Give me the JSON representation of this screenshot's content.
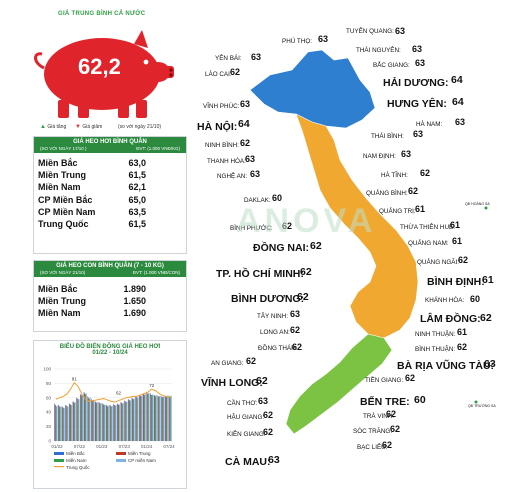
{
  "header": {
    "title": "GIÁ TRUNG BÌNH CẢ NƯỚC"
  },
  "national_average": {
    "value": "62,2"
  },
  "legend": {
    "up": "Giá tăng",
    "down": "Giá giảm",
    "date_note": "(so với ngày",
    "date": "21/10)"
  },
  "live_pig_table": {
    "title": "GIÁ HEO HƠI BÌNH QUÂN",
    "sub_left": "(SO VỚI NGÀY 17/10 )",
    "sub_right": "ĐVT: (1.000 VNĐ/KG)",
    "rows": [
      {
        "name": "Miền Bắc",
        "value": "63,0"
      },
      {
        "name": "Miền Trung",
        "value": "61,5"
      },
      {
        "name": "Miền Nam",
        "value": "62,1"
      },
      {
        "name": "CP Miền Bắc",
        "value": "65,0"
      },
      {
        "name": "CP Miền Nam",
        "value": "63,5"
      },
      {
        "name": "Trung Quốc",
        "value": "61,5"
      }
    ]
  },
  "piglet_table": {
    "title": "GIÁ HEO CON BÌNH QUÂN (7 - 10 KG)",
    "sub_left": "(SO VỚI NGÀY 21/10)",
    "sub_right": "ĐVT: (1.000 VNĐ/CON)",
    "rows": [
      {
        "name": "Miền Bắc",
        "value": "1.890"
      },
      {
        "name": "Miền Trung",
        "value": "1.650"
      },
      {
        "name": "Miền Nam",
        "value": "1.690"
      }
    ]
  },
  "chart_data": {
    "type": "bar",
    "title": "BIỂU ĐỒ BIẾN ĐỘNG GIÁ HEO HƠI",
    "subtitle": "01/22 - 10/24",
    "y_ticks": [
      "100",
      "80",
      "60",
      "40",
      "20",
      "0"
    ],
    "ylim": [
      0,
      100
    ],
    "x_ticks": [
      "01/22",
      "07/22",
      "01/23",
      "07/23",
      "01/24",
      "07/24"
    ],
    "annotations": [
      "81",
      "62",
      "72"
    ],
    "series": [
      {
        "name": "Miền Bắc",
        "color": "#2f6fd0",
        "values": [
          52,
          50,
          48,
          50,
          52,
          55,
          60,
          65,
          68,
          62,
          58,
          55,
          54,
          52,
          50,
          50,
          51,
          52,
          54,
          56,
          58,
          60,
          62,
          64,
          66,
          68,
          66,
          64,
          63,
          62,
          63,
          63
        ]
      },
      {
        "name": "Miền Trung",
        "color": "#c0392b",
        "values": [
          50,
          49,
          47,
          49,
          51,
          54,
          59,
          64,
          66,
          60,
          57,
          54,
          53,
          51,
          49,
          49,
          50,
          51,
          53,
          55,
          57,
          59,
          61,
          63,
          65,
          66,
          64,
          63,
          62,
          61,
          61,
          61
        ]
      },
      {
        "name": "Miền Nam",
        "color": "#2f9e44",
        "values": [
          48,
          47,
          46,
          48,
          50,
          53,
          58,
          63,
          65,
          59,
          56,
          53,
          52,
          50,
          48,
          48,
          49,
          50,
          52,
          54,
          56,
          58,
          60,
          62,
          64,
          66,
          64,
          62,
          62,
          61,
          62,
          62
        ]
      },
      {
        "name": "CP miền Nam",
        "color": "#7fb3e6",
        "values": [
          49,
          48,
          46,
          48,
          50,
          54,
          58,
          63,
          66,
          61,
          57,
          54,
          53,
          51,
          49,
          49,
          50,
          51,
          53,
          55,
          57,
          59,
          61,
          63,
          65,
          67,
          65,
          64,
          63,
          63,
          63,
          63
        ]
      },
      {
        "name": "Trung Quốc",
        "color": "#f0a030",
        "values": [
          58,
          60,
          62,
          65,
          72,
          81,
          76,
          66,
          58,
          55,
          56,
          57,
          58,
          59,
          57,
          55,
          54,
          56,
          58,
          60,
          61,
          62,
          62,
          64,
          66,
          68,
          72,
          70,
          66,
          63,
          62,
          61
        ]
      }
    ]
  },
  "map": {
    "labels": [
      {
        "name": "TUYÊN QUANG:",
        "value": "63"
      },
      {
        "name": "PHÚ THỌ:",
        "value": "63"
      },
      {
        "name": "THÁI NGUYÊN:",
        "value": "63"
      },
      {
        "name": "YÊN BÁI:",
        "value": "63"
      },
      {
        "name": "BẮC GIANG:",
        "value": "63"
      },
      {
        "name": "LÀO CAI:",
        "value": "62"
      },
      {
        "name": "HẢI DƯƠNG:",
        "value": "64"
      },
      {
        "name": "VĨNH PHÚC:",
        "value": "63"
      },
      {
        "name": "HƯNG YÊN:",
        "value": "64"
      },
      {
        "name": "HÀ NAM:",
        "value": "63"
      },
      {
        "name": "HÀ NỘI:",
        "value": "64"
      },
      {
        "name": "THÁI BÌNH:",
        "value": "63"
      },
      {
        "name": "NINH BÌNH:",
        "value": "62"
      },
      {
        "name": "NAM ĐỊNH:",
        "value": "63"
      },
      {
        "name": "THANH HÓA:",
        "value": "63"
      },
      {
        "name": "NGHỆ AN:",
        "value": "63"
      },
      {
        "name": "HÀ TĨNH:",
        "value": "62"
      },
      {
        "name": "QUẢNG BÌNH:",
        "value": "62"
      },
      {
        "name": "DAKLAK:",
        "value": "60"
      },
      {
        "name": "QUẢNG TRỊ:",
        "value": "61"
      },
      {
        "name": "THỪA THIÊN HUẾ:",
        "value": "61"
      },
      {
        "name": "BÌNH PHƯỚC:",
        "value": "62"
      },
      {
        "name": "QUẢNG NAM:",
        "value": "61"
      },
      {
        "name": "QUẢNG NGÃI:",
        "value": "62"
      },
      {
        "name": "ĐỒNG NAI:",
        "value": "62"
      },
      {
        "name": "TP. HỒ CHÍ MINH:",
        "value": "62"
      },
      {
        "name": "BÌNH ĐỊNH:",
        "value": "61"
      },
      {
        "name": "KHÁNH HÒA:",
        "value": "60"
      },
      {
        "name": "BÌNH DƯƠNG:",
        "value": "62"
      },
      {
        "name": "TÂY NINH:",
        "value": "63"
      },
      {
        "name": "LÂM ĐỒNG:",
        "value": "62"
      },
      {
        "name": "LONG AN:",
        "value": "62"
      },
      {
        "name": "NINH THUẬN:",
        "value": "61"
      },
      {
        "name": "ĐỒNG THÁP:",
        "value": "62"
      },
      {
        "name": "BÌNH THUẬN:",
        "value": "62"
      },
      {
        "name": "AN GIANG:",
        "value": "62"
      },
      {
        "name": "BÀ RỊA VŨNG TÀU:",
        "value": "63"
      },
      {
        "name": "VĨNH LONG:",
        "value": "62"
      },
      {
        "name": "TIỀN GIANG:",
        "value": "62"
      },
      {
        "name": "CẦN THƠ:",
        "value": "63"
      },
      {
        "name": "BẾN TRE:",
        "value": "60"
      },
      {
        "name": "TRÀ VINH:",
        "value": "62"
      },
      {
        "name": "HẬU GIANG:",
        "value": "62"
      },
      {
        "name": "SÓC TRĂNG:",
        "value": "62"
      },
      {
        "name": "KIÊN GIANG:",
        "value": "62"
      },
      {
        "name": "BẠC LIÊU:",
        "value": "62"
      },
      {
        "name": "CÀ MAU:",
        "value": "63"
      }
    ],
    "islands": [
      "QĐ HOÀNG SA",
      "QĐ TRƯỜNG SA"
    ]
  },
  "watermark": "ANOVAFEED",
  "colors": {
    "north": "#2f7fd0",
    "central": "#f0a830",
    "south": "#7cc243",
    "accent": "#2b8a3e",
    "pig": "#e0242b"
  }
}
